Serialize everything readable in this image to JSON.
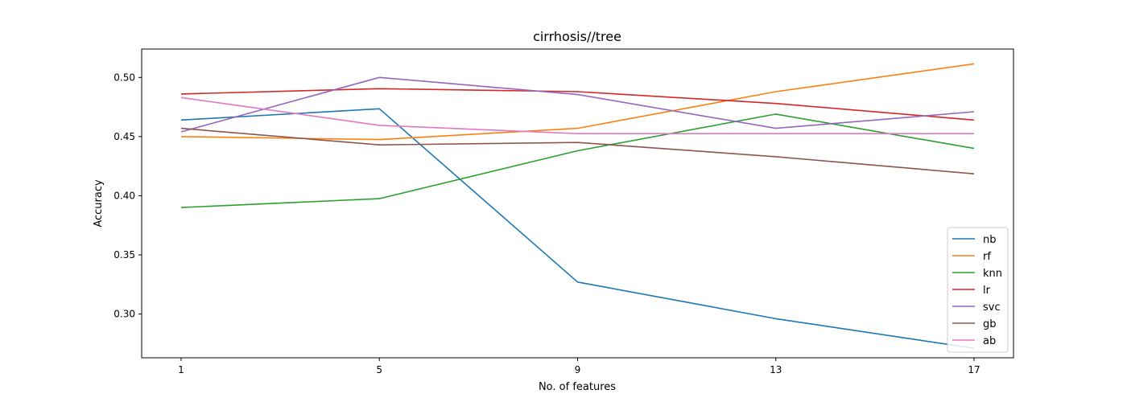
{
  "chart_data": {
    "type": "line",
    "title": "cirrhosis//tree",
    "xlabel": "No. of features",
    "ylabel": "Accuracy",
    "x": [
      1,
      5,
      9,
      13,
      17
    ],
    "xticks": [
      "1",
      "5",
      "9",
      "13",
      "17"
    ],
    "yticks": [
      "0.30",
      "0.35",
      "0.40",
      "0.45",
      "0.50"
    ],
    "ylim": [
      0.263,
      0.524
    ],
    "grid": false,
    "legend_position": "lower-right",
    "series": [
      {
        "name": "nb",
        "color": "#1f77b4",
        "values": [
          0.464,
          0.4735,
          0.327,
          0.296,
          0.271
        ]
      },
      {
        "name": "rf",
        "color": "#ff7f0e",
        "values": [
          0.45,
          0.4475,
          0.457,
          0.488,
          0.5115
        ]
      },
      {
        "name": "knn",
        "color": "#2ca02c",
        "values": [
          0.39,
          0.3975,
          0.438,
          0.469,
          0.44
        ]
      },
      {
        "name": "lr",
        "color": "#d62728",
        "values": [
          0.486,
          0.4905,
          0.488,
          0.478,
          0.464
        ]
      },
      {
        "name": "svc",
        "color": "#9467bd",
        "values": [
          0.454,
          0.5,
          0.4855,
          0.457,
          0.471
        ]
      },
      {
        "name": "gb",
        "color": "#8c564b",
        "values": [
          0.457,
          0.443,
          0.445,
          0.433,
          0.4185
        ]
      },
      {
        "name": "ab",
        "color": "#e377c2",
        "values": [
          0.483,
          0.4595,
          0.4525,
          0.4525,
          0.4525
        ]
      }
    ]
  }
}
